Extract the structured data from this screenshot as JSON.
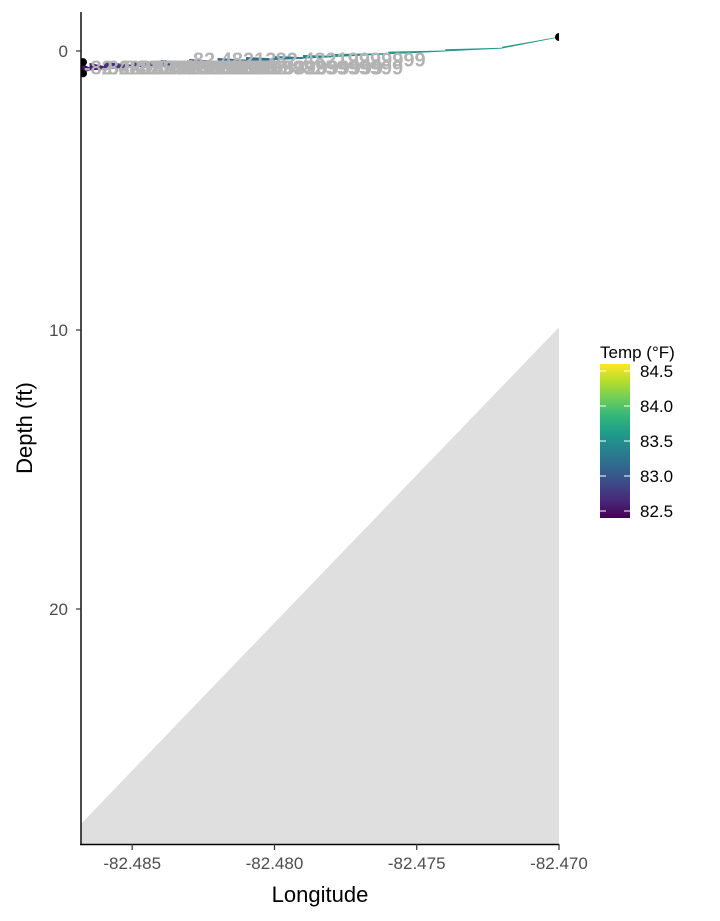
{
  "chart_data": {
    "type": "area",
    "xlabel": "Longitude",
    "ylabel": "Depth (ft)",
    "xlim": [
      -82.4868,
      -82.47
    ],
    "ylim": [
      0,
      28.5
    ],
    "y_reversed": true,
    "x_ticks": [
      -82.485,
      -82.48,
      -82.475,
      -82.47
    ],
    "x_tick_labels": [
      "-82.485",
      "-82.480",
      "-82.475",
      "-82.470"
    ],
    "y_ticks": [
      0,
      10,
      20
    ],
    "y_tick_labels": [
      "0",
      "10",
      "20"
    ],
    "grid": false,
    "bottom_profile": {
      "fill": "#dfdfdf",
      "x": [
        -82.4868,
        -82.47
      ],
      "y": [
        27.7,
        9.9
      ]
    },
    "track": {
      "x": [
        -82.4868,
        -82.4865,
        -82.486,
        -82.485,
        -82.484,
        -82.483,
        -82.482,
        -82.481,
        -82.48,
        -82.479,
        -82.478,
        -82.476,
        -82.474,
        -82.472,
        -82.47
      ],
      "depth": [
        0.7,
        0.65,
        0.6,
        0.55,
        0.5,
        0.45,
        0.4,
        0.35,
        0.3,
        0.25,
        0.2,
        0.1,
        0.0,
        -0.1,
        -0.5
      ],
      "temp": [
        82.5,
        82.6,
        82.7,
        82.8,
        82.9,
        83.0,
        83.1,
        83.2,
        83.3,
        83.4,
        83.5,
        83.6,
        83.6,
        83.6,
        83.6
      ]
    },
    "end_points": {
      "x": [
        -82.4868,
        -82.4868,
        -82.47
      ],
      "depth": [
        0.4,
        0.8,
        -0.5
      ],
      "color": "#000000"
    },
    "point_labels": [
      {
        "text": "-82.48213",
        "x": -82.4831,
        "depth": 0.3
      },
      {
        "text": "-82.48219999999",
        "x": -82.4802,
        "depth": 0.3
      },
      {
        "text": "-82.48699999",
        "x": -82.4867,
        "depth": 0.6
      },
      {
        "text": "-82.4865999999",
        "x": -82.4861,
        "depth": 0.6
      },
      {
        "text": "-82.48599999999",
        "x": -82.4855,
        "depth": 0.6
      },
      {
        "text": "-82.4855999999",
        "x": -82.485,
        "depth": 0.6
      },
      {
        "text": "-82.48519999",
        "x": -82.4845,
        "depth": 0.6
      },
      {
        "text": "-82.4849999999",
        "x": -82.4837,
        "depth": 0.6
      },
      {
        "text": "-82.4845999999",
        "x": -82.4829,
        "depth": 0.6
      },
      {
        "text": "-82.4839999999",
        "x": -82.4821,
        "depth": 0.6
      },
      {
        "text": "-82.4832999999",
        "x": -82.4813,
        "depth": 0.6
      },
      {
        "text": "-82.4825999999",
        "x": -82.4806,
        "depth": 0.6
      }
    ],
    "legend": {
      "title": "Temp (°F)",
      "position": "right",
      "min": 82.4,
      "max": 84.6,
      "ticks": [
        84.5,
        84.0,
        83.5,
        83.0,
        82.5
      ],
      "tick_labels": [
        "84.5",
        "84.0",
        "83.5",
        "83.0",
        "82.5"
      ],
      "colors": [
        "#440154",
        "#482878",
        "#3e4989",
        "#31688e",
        "#26828e",
        "#1f9e89",
        "#35b779",
        "#6ece58",
        "#b5de2b",
        "#fde725"
      ]
    }
  }
}
